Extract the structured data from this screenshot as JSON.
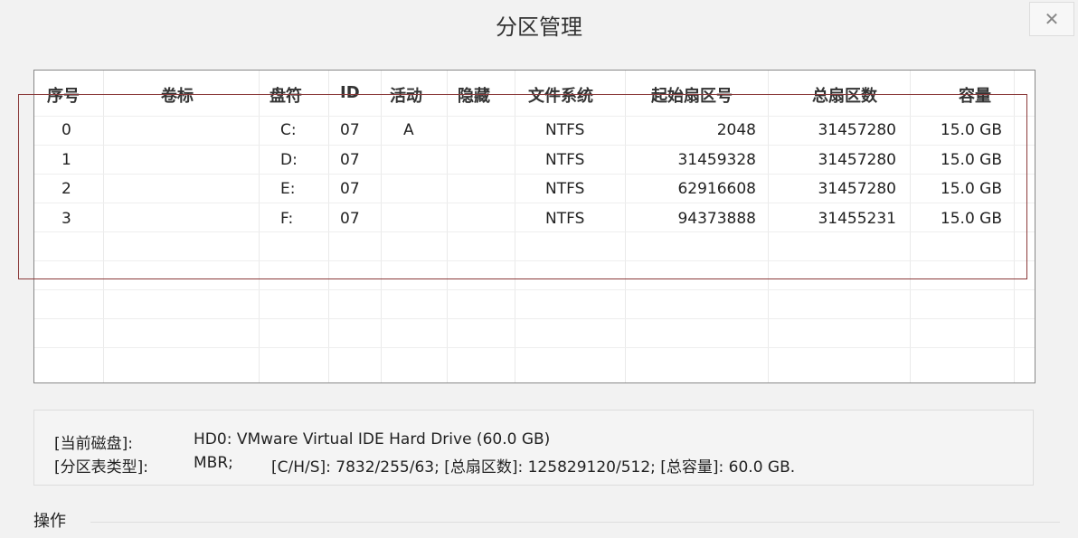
{
  "window": {
    "title": "分区管理",
    "close_icon": "close-icon"
  },
  "table": {
    "columns": [
      "序号",
      "卷标",
      "盘符",
      "ID",
      "活动",
      "隐藏",
      "文件系统",
      "起始扇区号",
      "总扇区数",
      "容量"
    ],
    "rows": [
      [
        "0",
        "",
        "C:",
        "07",
        "A",
        "",
        "NTFS",
        "2048",
        "31457280",
        "15.0 GB"
      ],
      [
        "1",
        "",
        "D:",
        "07",
        "",
        "",
        "NTFS",
        "31459328",
        "31457280",
        "15.0 GB"
      ],
      [
        "2",
        "",
        "E:",
        "07",
        "",
        "",
        "NTFS",
        "62916608",
        "31457280",
        "15.0 GB"
      ],
      [
        "3",
        "",
        "F:",
        "07",
        "",
        "",
        "NTFS",
        "94373888",
        "31455231",
        "15.0 GB"
      ]
    ]
  },
  "info": {
    "disk_label": "[当前磁盘]:",
    "disk_value": "HD0: VMware Virtual IDE Hard Drive (60.0 GB)",
    "ptype_label": "[分区表类型]:",
    "ptype_value": "MBR;",
    "chs": "[C/H/S]: 7832/255/63; [总扇区数]: 125829120/512; [总容量]: 60.0 GB."
  },
  "operations": {
    "label": "操作"
  },
  "colors": {
    "highlight_border": "#8b3a3a"
  }
}
